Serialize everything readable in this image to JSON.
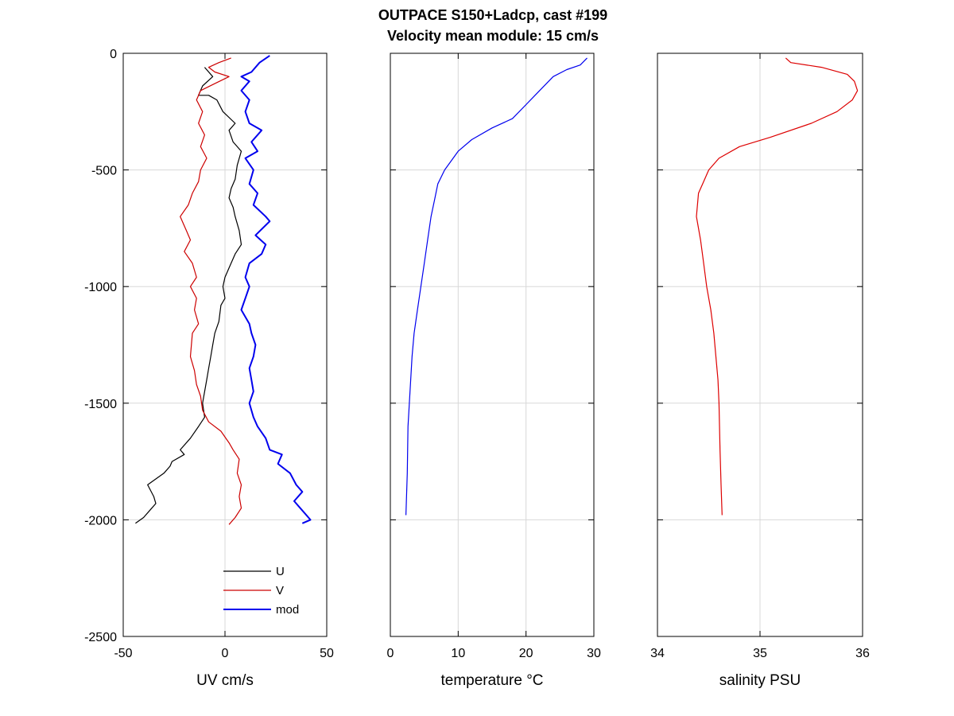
{
  "figure": {
    "title_line1": "OUTPACE S150+Ladcp, cast #199",
    "title_line2": "Velocity mean module:  15 cm/s"
  },
  "chart_data": [
    {
      "type": "line",
      "xlabel": "UV cm/s",
      "ylabel": "",
      "xlim": [
        -50,
        50
      ],
      "ylim": [
        -2500,
        0
      ],
      "xticks": [
        "-50",
        "0",
        "50"
      ],
      "yticks": [
        "0",
        "-500",
        "-1000",
        "-1500",
        "-2000",
        "-2500"
      ],
      "grid": true,
      "legend": {
        "placement": "bottom-right",
        "entries": [
          "U",
          "V",
          "mod"
        ]
      },
      "series": [
        {
          "name": "U",
          "color": "#000000",
          "points": [
            [
              -10,
              -60
            ],
            [
              -6,
              -100
            ],
            [
              -11,
              -140
            ],
            [
              -13,
              -180
            ],
            [
              -8,
              -180
            ],
            [
              -4,
              -200
            ],
            [
              -1,
              -250
            ],
            [
              5,
              -300
            ],
            [
              2,
              -330
            ],
            [
              4,
              -380
            ],
            [
              8,
              -420
            ],
            [
              6,
              -480
            ],
            [
              5,
              -540
            ],
            [
              3,
              -580
            ],
            [
              2,
              -620
            ],
            [
              4,
              -660
            ],
            [
              5,
              -700
            ],
            [
              7,
              -760
            ],
            [
              8,
              -820
            ],
            [
              5,
              -860
            ],
            [
              2,
              -920
            ],
            [
              0,
              -960
            ],
            [
              -1,
              -1000
            ],
            [
              0,
              -1050
            ],
            [
              -2,
              -1080
            ],
            [
              -3,
              -1150
            ],
            [
              -5,
              -1200
            ],
            [
              -6,
              -1250
            ],
            [
              -7,
              -1300
            ],
            [
              -8,
              -1350
            ],
            [
              -9,
              -1400
            ],
            [
              -10,
              -1450
            ],
            [
              -11,
              -1500
            ],
            [
              -10,
              -1560
            ],
            [
              -13,
              -1600
            ],
            [
              -17,
              -1650
            ],
            [
              -22,
              -1700
            ],
            [
              -20,
              -1720
            ],
            [
              -26,
              -1750
            ],
            [
              -27,
              -1770
            ],
            [
              -30,
              -1800
            ],
            [
              -38,
              -1850
            ],
            [
              -35,
              -1900
            ],
            [
              -34,
              -1930
            ],
            [
              -37,
              -1960
            ],
            [
              -40,
              -1990
            ],
            [
              -44,
              -2015
            ]
          ]
        },
        {
          "name": "V",
          "color": "#cc0000",
          "points": [
            [
              3,
              -20
            ],
            [
              -3,
              -40
            ],
            [
              -8,
              -60
            ],
            [
              -5,
              -80
            ],
            [
              2,
              -100
            ],
            [
              -5,
              -130
            ],
            [
              -12,
              -160
            ],
            [
              -14,
              -200
            ],
            [
              -11,
              -250
            ],
            [
              -13,
              -300
            ],
            [
              -10,
              -350
            ],
            [
              -12,
              -400
            ],
            [
              -9,
              -450
            ],
            [
              -12,
              -500
            ],
            [
              -13,
              -550
            ],
            [
              -16,
              -600
            ],
            [
              -18,
              -650
            ],
            [
              -22,
              -700
            ],
            [
              -19,
              -760
            ],
            [
              -17,
              -800
            ],
            [
              -20,
              -850
            ],
            [
              -16,
              -900
            ],
            [
              -14,
              -960
            ],
            [
              -17,
              -1000
            ],
            [
              -14,
              -1050
            ],
            [
              -15,
              -1100
            ],
            [
              -13,
              -1160
            ],
            [
              -16,
              -1200
            ],
            [
              -17,
              -1300
            ],
            [
              -15,
              -1360
            ],
            [
              -14,
              -1420
            ],
            [
              -12,
              -1470
            ],
            [
              -11,
              -1530
            ],
            [
              -8,
              -1580
            ],
            [
              -2,
              -1620
            ],
            [
              2,
              -1670
            ],
            [
              4,
              -1700
            ],
            [
              7,
              -1740
            ],
            [
              6,
              -1800
            ],
            [
              8,
              -1850
            ],
            [
              7,
              -1900
            ],
            [
              8,
              -1950
            ],
            [
              5,
              -1990
            ],
            [
              2,
              -2020
            ]
          ]
        },
        {
          "name": "mod",
          "color": "#0000ee",
          "points": [
            [
              22,
              -10
            ],
            [
              17,
              -40
            ],
            [
              13,
              -80
            ],
            [
              8,
              -100
            ],
            [
              12,
              -120
            ],
            [
              8,
              -160
            ],
            [
              12,
              -200
            ],
            [
              10,
              -250
            ],
            [
              12,
              -300
            ],
            [
              18,
              -330
            ],
            [
              13,
              -380
            ],
            [
              16,
              -420
            ],
            [
              10,
              -450
            ],
            [
              14,
              -500
            ],
            [
              12,
              -560
            ],
            [
              16,
              -600
            ],
            [
              14,
              -650
            ],
            [
              20,
              -700
            ],
            [
              22,
              -720
            ],
            [
              15,
              -780
            ],
            [
              20,
              -820
            ],
            [
              18,
              -860
            ],
            [
              12,
              -900
            ],
            [
              10,
              -960
            ],
            [
              12,
              -1000
            ],
            [
              10,
              -1050
            ],
            [
              8,
              -1100
            ],
            [
              12,
              -1160
            ],
            [
              13,
              -1200
            ],
            [
              15,
              -1250
            ],
            [
              14,
              -1300
            ],
            [
              12,
              -1350
            ],
            [
              13,
              -1400
            ],
            [
              14,
              -1450
            ],
            [
              12,
              -1500
            ],
            [
              14,
              -1560
            ],
            [
              16,
              -1600
            ],
            [
              20,
              -1650
            ],
            [
              22,
              -1700
            ],
            [
              28,
              -1720
            ],
            [
              26,
              -1760
            ],
            [
              32,
              -1800
            ],
            [
              35,
              -1850
            ],
            [
              38,
              -1880
            ],
            [
              34,
              -1920
            ],
            [
              38,
              -1960
            ],
            [
              42,
              -2000
            ],
            [
              38,
              -2015
            ]
          ]
        }
      ]
    },
    {
      "type": "line",
      "xlabel": "temperature °C",
      "ylabel": "",
      "xlim": [
        0,
        30
      ],
      "ylim": [
        -2500,
        0
      ],
      "xticks": [
        "0",
        "10",
        "20",
        "30"
      ],
      "grid": true,
      "series": [
        {
          "color": "#0000ee",
          "points": [
            [
              29,
              -20
            ],
            [
              28,
              -50
            ],
            [
              26,
              -70
            ],
            [
              24,
              -100
            ],
            [
              22,
              -160
            ],
            [
              20,
              -220
            ],
            [
              18,
              -280
            ],
            [
              15,
              -320
            ],
            [
              12,
              -370
            ],
            [
              10,
              -420
            ],
            [
              9,
              -460
            ],
            [
              8,
              -500
            ],
            [
              7,
              -560
            ],
            [
              6.5,
              -630
            ],
            [
              6,
              -700
            ],
            [
              5.5,
              -800
            ],
            [
              5,
              -900
            ],
            [
              4.5,
              -1000
            ],
            [
              4,
              -1100
            ],
            [
              3.5,
              -1200
            ],
            [
              3.2,
              -1300
            ],
            [
              3,
              -1400
            ],
            [
              2.8,
              -1500
            ],
            [
              2.6,
              -1600
            ],
            [
              2.5,
              -1800
            ],
            [
              2.3,
              -1980
            ]
          ]
        }
      ]
    },
    {
      "type": "line",
      "xlabel": "salinity PSU",
      "ylabel": "",
      "xlim": [
        34,
        36
      ],
      "ylim": [
        -2500,
        0
      ],
      "xticks": [
        "34",
        "35",
        "36"
      ],
      "grid": true,
      "series": [
        {
          "color": "#dd0000",
          "points": [
            [
              35.25,
              -20
            ],
            [
              35.3,
              -40
            ],
            [
              35.6,
              -60
            ],
            [
              35.85,
              -90
            ],
            [
              35.92,
              -120
            ],
            [
              35.95,
              -160
            ],
            [
              35.9,
              -200
            ],
            [
              35.75,
              -250
            ],
            [
              35.5,
              -300
            ],
            [
              35.1,
              -360
            ],
            [
              34.8,
              -400
            ],
            [
              34.6,
              -450
            ],
            [
              34.5,
              -500
            ],
            [
              34.45,
              -550
            ],
            [
              34.4,
              -600
            ],
            [
              34.38,
              -700
            ],
            [
              34.4,
              -750
            ],
            [
              34.42,
              -800
            ],
            [
              34.45,
              -900
            ],
            [
              34.48,
              -1000
            ],
            [
              34.52,
              -1100
            ],
            [
              34.55,
              -1200
            ],
            [
              34.57,
              -1300
            ],
            [
              34.59,
              -1400
            ],
            [
              34.6,
              -1500
            ],
            [
              34.61,
              -1700
            ],
            [
              34.62,
              -1850
            ],
            [
              34.63,
              -1980
            ]
          ]
        }
      ]
    }
  ]
}
